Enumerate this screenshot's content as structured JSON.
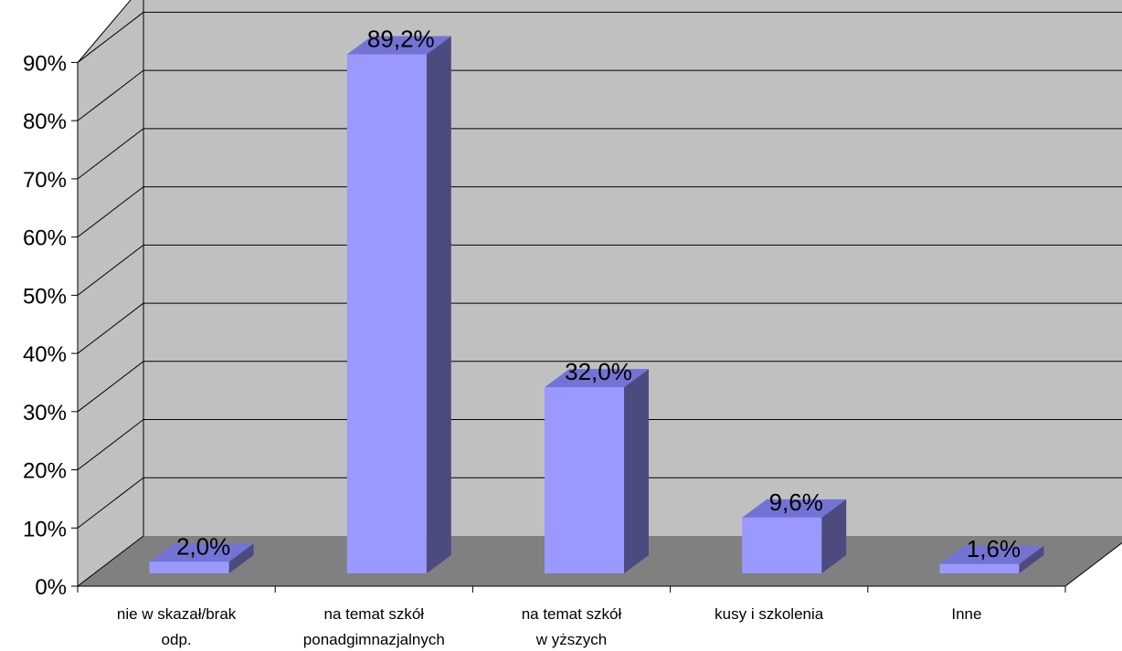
{
  "chart_data": {
    "type": "bar",
    "style": "3d-column",
    "categories": [
      [
        "nie w skazał/brak",
        "odp."
      ],
      [
        "na temat szkół",
        "ponadgimnazjalnych"
      ],
      [
        "na  temat szkół",
        "w yższych"
      ],
      [
        "kusy i szkolenia"
      ],
      [
        "Inne"
      ]
    ],
    "values": [
      2.0,
      89.2,
      32.0,
      9.6,
      1.6
    ],
    "data_labels": [
      "2,0%",
      "89,2%",
      "32,0%",
      "9,6%",
      "1,6%"
    ],
    "y_ticks": [
      "0%",
      "10%",
      "20%",
      "30%",
      "40%",
      "50%",
      "60%",
      "70%",
      "80%",
      "90%"
    ],
    "ylim": [
      0,
      90
    ],
    "grid": true,
    "legend": "none",
    "colors": {
      "bar_front": "#9999ff",
      "bar_side": "#4b4b80",
      "bar_top": "#7373d6",
      "back_wall": "#c0c0c0",
      "side_wall": "#c0c0c0",
      "floor": "#808080",
      "gridline": "#000000"
    }
  }
}
